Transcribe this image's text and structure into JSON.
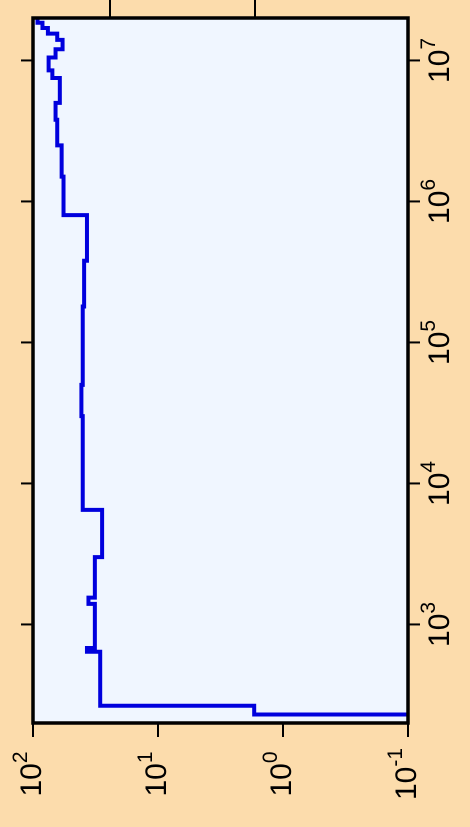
{
  "chart_data": {
    "type": "line",
    "orientation": "rotated",
    "step": true,
    "x_scale": "log",
    "y_scale": "log",
    "xlim": [
      200,
      20000000
    ],
    "ylim": [
      0.1,
      100
    ],
    "grid": false,
    "legend": "none",
    "x_ticks": [
      {
        "value": 1000,
        "base": "10",
        "exp": "3"
      },
      {
        "value": 10000,
        "base": "10",
        "exp": "4"
      },
      {
        "value": 100000,
        "base": "10",
        "exp": "5"
      },
      {
        "value": 1000000,
        "base": "10",
        "exp": "6"
      },
      {
        "value": 10000000,
        "base": "10",
        "exp": "7"
      }
    ],
    "y_ticks": [
      {
        "value": 100,
        "base": "10",
        "exp": "2"
      },
      {
        "value": 10,
        "base": "10",
        "exp": "1"
      },
      {
        "value": 1,
        "base": "10",
        "exp": "0"
      },
      {
        "value": 0.1,
        "base": "10",
        "exp": "-1"
      }
    ],
    "series": [
      {
        "color": "#0000dd",
        "points": [
          [
            230,
            0.1
          ],
          [
            230,
            1.7
          ],
          [
            265,
            1.7
          ],
          [
            265,
            29
          ],
          [
            640,
            29
          ],
          [
            640,
            37
          ],
          [
            680,
            37
          ],
          [
            680,
            32
          ],
          [
            1400,
            32
          ],
          [
            1400,
            36
          ],
          [
            1550,
            36
          ],
          [
            1550,
            32
          ],
          [
            3000,
            32
          ],
          [
            3000,
            28
          ],
          [
            6500,
            28
          ],
          [
            6500,
            40
          ],
          [
            30000,
            40
          ],
          [
            30000,
            41
          ],
          [
            50000,
            41
          ],
          [
            50000,
            40
          ],
          [
            180000,
            40
          ],
          [
            180000,
            39
          ],
          [
            380000,
            39
          ],
          [
            380000,
            37
          ],
          [
            800000,
            37
          ],
          [
            800000,
            57
          ],
          [
            1500000,
            57
          ],
          [
            1500000,
            59
          ],
          [
            2500000,
            59
          ],
          [
            2500000,
            64
          ],
          [
            3800000,
            64
          ],
          [
            3800000,
            66
          ],
          [
            5000000,
            66
          ],
          [
            5000000,
            61
          ],
          [
            7500000,
            61
          ],
          [
            7500000,
            70
          ],
          [
            8500000,
            70
          ],
          [
            8500000,
            75
          ],
          [
            10500000,
            75
          ],
          [
            10500000,
            66
          ],
          [
            12000000,
            66
          ],
          [
            12000000,
            58
          ],
          [
            14000000,
            58
          ],
          [
            14000000,
            64
          ],
          [
            15500000,
            64
          ],
          [
            15500000,
            76
          ],
          [
            17000000,
            76
          ],
          [
            17000000,
            84
          ],
          [
            18500000,
            84
          ],
          [
            18500000,
            92
          ],
          [
            20000000,
            92
          ]
        ]
      }
    ]
  }
}
